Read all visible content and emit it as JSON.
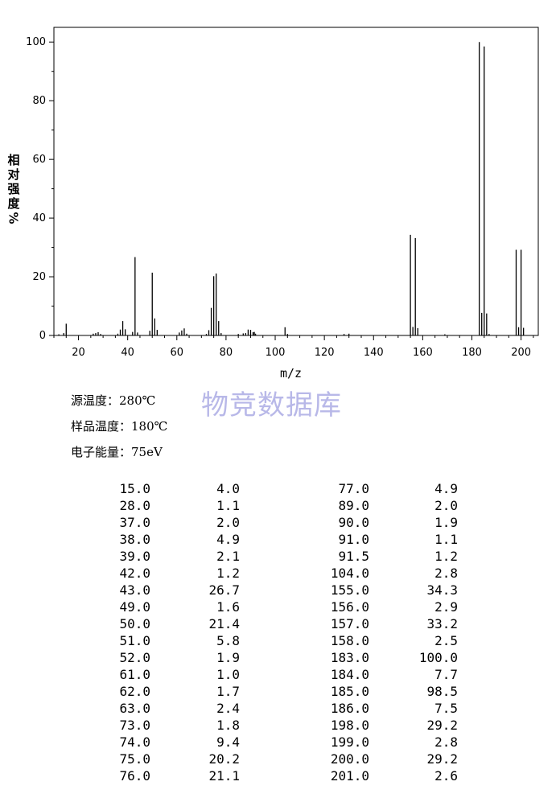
{
  "chart_data": {
    "type": "bar",
    "xlabel": "m/z",
    "ylabel": "相对强度/%",
    "ylabel_chars": [
      "相",
      "对",
      "强",
      "度"
    ],
    "ylabel_unit": "%",
    "xlim": [
      10,
      207
    ],
    "ylim": [
      0,
      105
    ],
    "xticks": [
      20,
      40,
      60,
      80,
      100,
      120,
      140,
      160,
      180,
      200
    ],
    "yticks": [
      0,
      20,
      40,
      60,
      80,
      100
    ],
    "peaks": [
      {
        "x": 12,
        "y": 0.4
      },
      {
        "x": 14,
        "y": 0.8
      },
      {
        "x": 15,
        "y": 4.0
      },
      {
        "x": 26,
        "y": 0.6
      },
      {
        "x": 27,
        "y": 0.8
      },
      {
        "x": 28,
        "y": 1.1
      },
      {
        "x": 29,
        "y": 0.5
      },
      {
        "x": 36,
        "y": 0.6
      },
      {
        "x": 37,
        "y": 2.0
      },
      {
        "x": 38,
        "y": 4.9
      },
      {
        "x": 39,
        "y": 2.1
      },
      {
        "x": 42,
        "y": 1.2
      },
      {
        "x": 43,
        "y": 26.7
      },
      {
        "x": 44,
        "y": 1.0
      },
      {
        "x": 49,
        "y": 1.6
      },
      {
        "x": 50,
        "y": 21.4
      },
      {
        "x": 51,
        "y": 5.8
      },
      {
        "x": 52,
        "y": 1.9
      },
      {
        "x": 61,
        "y": 1.0
      },
      {
        "x": 62,
        "y": 1.7
      },
      {
        "x": 63,
        "y": 2.4
      },
      {
        "x": 64,
        "y": 0.6
      },
      {
        "x": 72,
        "y": 0.5
      },
      {
        "x": 73,
        "y": 1.8
      },
      {
        "x": 74,
        "y": 9.4
      },
      {
        "x": 75,
        "y": 20.2
      },
      {
        "x": 76,
        "y": 21.1
      },
      {
        "x": 77,
        "y": 4.9
      },
      {
        "x": 78,
        "y": 0.8
      },
      {
        "x": 85,
        "y": 0.5
      },
      {
        "x": 87,
        "y": 0.7
      },
      {
        "x": 88,
        "y": 0.8
      },
      {
        "x": 89,
        "y": 2.0
      },
      {
        "x": 90,
        "y": 1.9
      },
      {
        "x": 91,
        "y": 1.1
      },
      {
        "x": 91.5,
        "y": 1.2
      },
      {
        "x": 92,
        "y": 0.6
      },
      {
        "x": 104,
        "y": 2.8
      },
      {
        "x": 105,
        "y": 0.5
      },
      {
        "x": 128,
        "y": 0.5
      },
      {
        "x": 130,
        "y": 0.6
      },
      {
        "x": 155,
        "y": 34.3
      },
      {
        "x": 156,
        "y": 2.9
      },
      {
        "x": 157,
        "y": 33.2
      },
      {
        "x": 158,
        "y": 2.5
      },
      {
        "x": 169,
        "y": 0.4
      },
      {
        "x": 183,
        "y": 100.0
      },
      {
        "x": 184,
        "y": 7.7
      },
      {
        "x": 185,
        "y": 98.5
      },
      {
        "x": 186,
        "y": 7.5
      },
      {
        "x": 187,
        "y": 0.5
      },
      {
        "x": 198,
        "y": 29.2
      },
      {
        "x": 199,
        "y": 2.8
      },
      {
        "x": 200,
        "y": 29.2
      },
      {
        "x": 201,
        "y": 2.6
      }
    ]
  },
  "watermark": "物竞数据库",
  "conditions": [
    "源温度：280℃",
    "样品温度：180℃",
    "电子能量：75eV"
  ],
  "table": [
    [
      "15.0",
      "4.0",
      "77.0",
      "4.9"
    ],
    [
      "28.0",
      "1.1",
      "89.0",
      "2.0"
    ],
    [
      "37.0",
      "2.0",
      "90.0",
      "1.9"
    ],
    [
      "38.0",
      "4.9",
      "91.0",
      "1.1"
    ],
    [
      "39.0",
      "2.1",
      "91.5",
      "1.2"
    ],
    [
      "42.0",
      "1.2",
      "104.0",
      "2.8"
    ],
    [
      "43.0",
      "26.7",
      "155.0",
      "34.3"
    ],
    [
      "49.0",
      "1.6",
      "156.0",
      "2.9"
    ],
    [
      "50.0",
      "21.4",
      "157.0",
      "33.2"
    ],
    [
      "51.0",
      "5.8",
      "158.0",
      "2.5"
    ],
    [
      "52.0",
      "1.9",
      "183.0",
      "100.0"
    ],
    [
      "61.0",
      "1.0",
      "184.0",
      "7.7"
    ],
    [
      "62.0",
      "1.7",
      "185.0",
      "98.5"
    ],
    [
      "63.0",
      "2.4",
      "186.0",
      "7.5"
    ],
    [
      "73.0",
      "1.8",
      "198.0",
      "29.2"
    ],
    [
      "74.0",
      "9.4",
      "199.0",
      "2.8"
    ],
    [
      "75.0",
      "20.2",
      "200.0",
      "29.2"
    ],
    [
      "76.0",
      "21.1",
      "201.0",
      "2.6"
    ]
  ]
}
